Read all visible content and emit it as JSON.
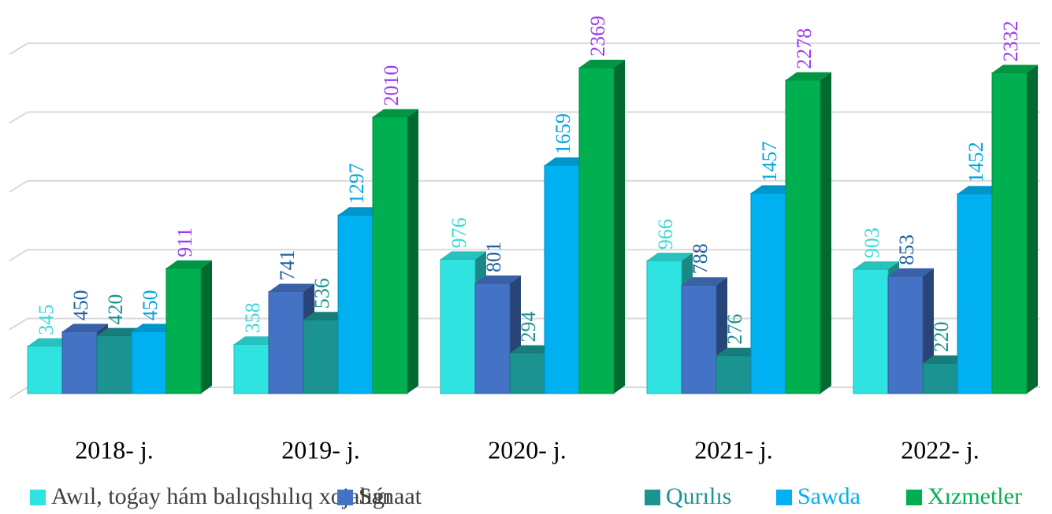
{
  "chart_data": {
    "type": "bar3d",
    "categories": [
      "2018- j.",
      "2019- j.",
      "2020- j.",
      "2021- j.",
      "2022- j."
    ],
    "series": [
      {
        "name": "Awıl, toǵay hám balıqshılıq xojalıǵı",
        "color": "#2ee3e0",
        "label_color": "#3dd9d6",
        "legend_color": "#404040",
        "values": [
          345,
          358,
          976,
          966,
          903
        ]
      },
      {
        "name": "Sanaat",
        "color": "#4472c4",
        "label_color": "#1f5f9e",
        "legend_color": "#404040",
        "values": [
          450,
          741,
          801,
          788,
          853
        ]
      },
      {
        "name": "Qurılıs",
        "color": "#1a9391",
        "label_color": "#1a9391",
        "legend_color": "#1a9391",
        "values": [
          420,
          536,
          294,
          276,
          220
        ]
      },
      {
        "name": "Sawda",
        "color": "#00b0f0",
        "label_color": "#00a5e0",
        "legend_color": "#00b0f0",
        "values": [
          450,
          1297,
          1659,
          1457,
          1452
        ]
      },
      {
        "name": "Xızmetler",
        "color": "#00b050",
        "label_color": "#9a3cf0",
        "legend_color": "#00b050",
        "values": [
          911,
          2010,
          2369,
          2278,
          2332
        ]
      }
    ],
    "ylim": [
      0,
      2500
    ],
    "yticks": [
      0,
      500,
      1000,
      1500,
      2000,
      2500
    ],
    "grid": true
  }
}
